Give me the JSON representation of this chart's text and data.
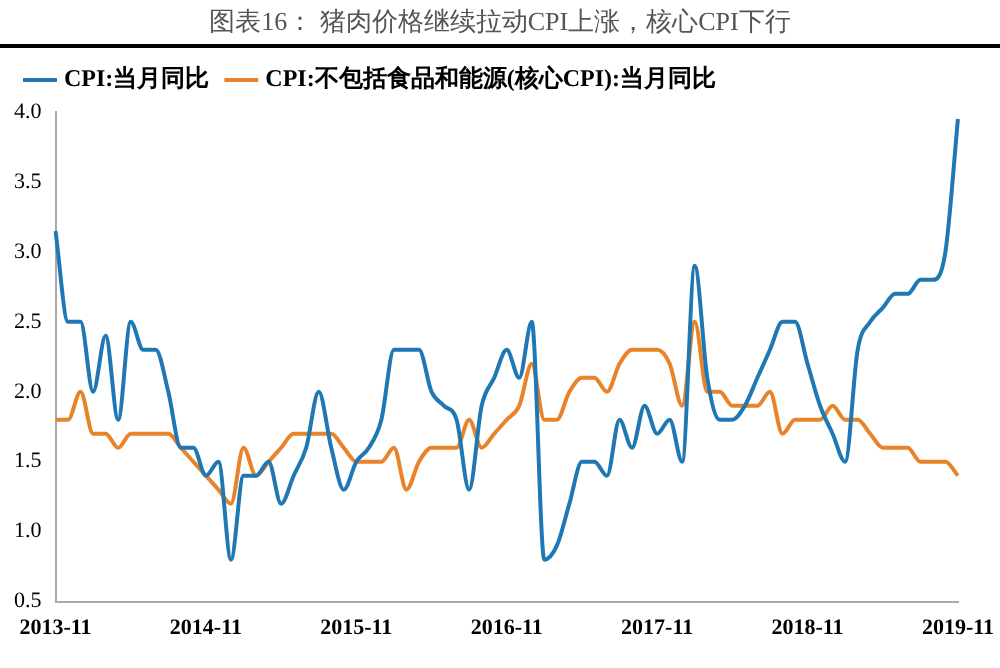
{
  "chart_data": {
    "type": "line",
    "title": "图表16： 猪肉价格继续拉动CPI上涨，核心CPI下行",
    "categories": [
      "2013-11",
      null,
      null,
      null,
      null,
      null,
      null,
      null,
      null,
      null,
      null,
      null,
      "2014-11",
      null,
      null,
      null,
      null,
      null,
      null,
      null,
      null,
      null,
      null,
      null,
      "2015-11",
      null,
      null,
      null,
      null,
      null,
      null,
      null,
      null,
      null,
      null,
      null,
      "2016-11",
      null,
      null,
      null,
      null,
      null,
      null,
      null,
      null,
      null,
      null,
      null,
      "2017-11",
      null,
      null,
      null,
      null,
      null,
      null,
      null,
      null,
      null,
      null,
      null,
      "2018-11",
      null,
      null,
      null,
      null,
      null,
      null,
      null,
      null,
      null,
      null,
      null,
      "2019-11"
    ],
    "series": [
      {
        "name": "CPI:当月同比",
        "color": "#1f77b4",
        "values": [
          3.15,
          2.5,
          2.5,
          2.0,
          2.4,
          1.8,
          2.5,
          2.3,
          2.3,
          2.0,
          1.6,
          1.6,
          1.4,
          1.5,
          0.8,
          1.4,
          1.4,
          1.5,
          1.2,
          1.4,
          1.6,
          2.0,
          1.6,
          1.3,
          1.5,
          1.6,
          1.8,
          2.3,
          2.3,
          2.3,
          2.0,
          1.9,
          1.8,
          1.3,
          1.9,
          2.1,
          2.3,
          2.1,
          2.5,
          0.8,
          0.9,
          1.2,
          1.5,
          1.5,
          1.4,
          1.8,
          1.6,
          1.9,
          1.7,
          1.8,
          1.5,
          2.9,
          2.1,
          1.8,
          1.8,
          1.9,
          2.1,
          2.3,
          2.5,
          2.5,
          2.2,
          1.9,
          1.7,
          1.5,
          2.3,
          2.5,
          2.6,
          2.7,
          2.7,
          2.8,
          2.8,
          3.0,
          3.95
        ]
      },
      {
        "name": "CPI:不包括食品和能源(核心CPI):当月同比",
        "color": "#e8832a",
        "values": [
          1.8,
          1.8,
          2.0,
          1.7,
          1.7,
          1.6,
          1.7,
          1.7,
          1.7,
          1.7,
          1.6,
          1.5,
          1.4,
          1.3,
          1.2,
          1.6,
          1.4,
          1.5,
          1.6,
          1.7,
          1.7,
          1.7,
          1.7,
          1.6,
          1.5,
          1.5,
          1.5,
          1.6,
          1.3,
          1.5,
          1.6,
          1.6,
          1.6,
          1.8,
          1.6,
          1.7,
          1.8,
          1.9,
          2.2,
          1.8,
          1.8,
          2.0,
          2.1,
          2.1,
          2.0,
          2.2,
          2.3,
          2.3,
          2.3,
          2.2,
          1.9,
          2.5,
          2.0,
          2.0,
          1.9,
          1.9,
          1.9,
          2.0,
          1.7,
          1.8,
          1.8,
          1.8,
          1.9,
          1.8,
          1.8,
          1.7,
          1.6,
          1.6,
          1.6,
          1.5,
          1.5,
          1.5,
          1.4
        ]
      }
    ],
    "ylim": [
      0.5,
      4.0
    ],
    "yticks": [
      {
        "value": 0.5,
        "label": "0.5"
      },
      {
        "value": 1,
        "label": "1.0"
      },
      {
        "value": 1.5,
        "label": "1.5"
      },
      {
        "value": 2,
        "label": "2.0"
      },
      {
        "value": 2.5,
        "label": "2.5"
      },
      {
        "value": 3,
        "label": "3.0"
      },
      {
        "value": 3.5,
        "label": "3.5"
      },
      {
        "value": 4,
        "label": "4.0"
      }
    ],
    "grid": false,
    "legend": "top left",
    "marker": "none",
    "line_style": "solid"
  }
}
